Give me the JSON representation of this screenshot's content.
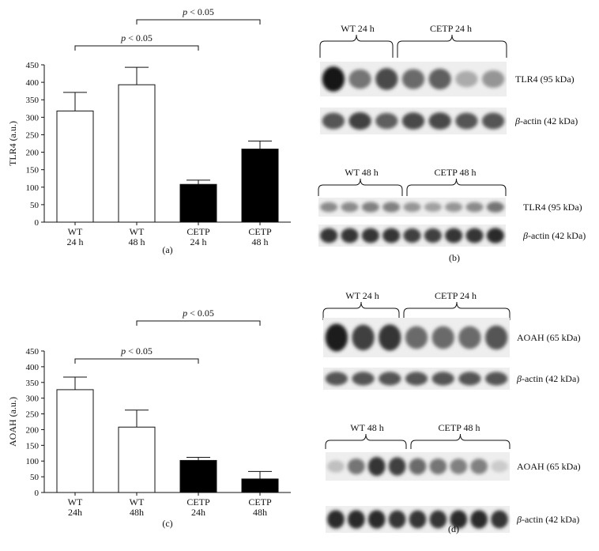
{
  "chart_data": [
    {
      "type": "bar",
      "panel": "(a)",
      "ylabel": "TLR4 (a.u.)",
      "ylim": [
        0,
        450
      ],
      "yticks": [
        0,
        50,
        100,
        150,
        200,
        250,
        300,
        350,
        400,
        450
      ],
      "categories": [
        [
          "WT",
          "24 h"
        ],
        [
          "WT",
          "48 h"
        ],
        [
          "CETP",
          "24 h"
        ],
        [
          "CETP",
          "48 h"
        ]
      ],
      "values": [
        318,
        393,
        108,
        209
      ],
      "errors": [
        53,
        50,
        12,
        23
      ],
      "bar_colors": [
        "#ffffff",
        "#ffffff",
        "#000000",
        "#000000"
      ],
      "significance": [
        {
          "from": 0,
          "to": 2,
          "p_italic": "p",
          "text": " < 0.05"
        },
        {
          "from": 1,
          "to": 3,
          "p_italic": "p",
          "text": " < 0.05"
        }
      ]
    },
    {
      "type": "bar",
      "panel": "(c)",
      "ylabel": "AOAH (a.u.)",
      "ylim": [
        0,
        450
      ],
      "yticks": [
        0,
        50,
        100,
        150,
        200,
        250,
        300,
        350,
        400,
        450
      ],
      "categories": [
        [
          "WT",
          "24h"
        ],
        [
          "WT",
          "48h"
        ],
        [
          "CETP",
          "24h"
        ],
        [
          "CETP",
          "48h"
        ]
      ],
      "values": [
        327,
        208,
        102,
        43
      ],
      "errors": [
        40,
        54,
        10,
        24
      ],
      "bar_colors": [
        "#ffffff",
        "#ffffff",
        "#000000",
        "#000000"
      ],
      "significance": [
        {
          "from": 0,
          "to": 2,
          "p_italic": "p",
          "text": " < 0.05"
        },
        {
          "from": 1,
          "to": 3,
          "p_italic": "p",
          "text": " < 0.05"
        }
      ]
    }
  ],
  "blots": [
    {
      "panel": "(b)",
      "groups": [
        "WT 24 h",
        "CETP 24 h"
      ],
      "rows": [
        {
          "label_italic": "",
          "label": "TLR4 (95 kDa)",
          "bands": [
            1.0,
            0.55,
            0.75,
            0.6,
            0.65,
            0.3,
            0.4
          ]
        },
        {
          "label_italic": "β",
          "label": "-actin (42 kDa)",
          "bands": [
            0.7,
            0.8,
            0.65,
            0.75,
            0.75,
            0.7,
            0.7
          ]
        }
      ]
    },
    {
      "panel": "",
      "groups": [
        "WT 48 h",
        "CETP 48 h"
      ],
      "rows": [
        {
          "label_italic": "",
          "label": "TLR4 (95 kDa)",
          "bands": [
            0.45,
            0.45,
            0.5,
            0.5,
            0.4,
            0.35,
            0.4,
            0.45,
            0.55
          ]
        },
        {
          "label_italic": "β",
          "label": "-actin (42 kDa)",
          "bands": [
            0.85,
            0.85,
            0.85,
            0.85,
            0.8,
            0.8,
            0.85,
            0.85,
            0.9
          ]
        }
      ]
    },
    {
      "panel": "",
      "groups": [
        "WT 24 h",
        "CETP 24 h"
      ],
      "rows": [
        {
          "label_italic": "",
          "label": "AOAH (65 kDa)",
          "bands": [
            0.95,
            0.8,
            0.85,
            0.6,
            0.6,
            0.6,
            0.7
          ]
        },
        {
          "label_italic": "β",
          "label": "-actin (42 kDa)",
          "bands": [
            0.7,
            0.7,
            0.7,
            0.7,
            0.7,
            0.7,
            0.7
          ]
        }
      ]
    },
    {
      "panel": "(d)",
      "groups": [
        "WT 48 h",
        "CETP 48 h"
      ],
      "rows": [
        {
          "label_italic": "",
          "label": "AOAH (65 kDa)",
          "bands": [
            0.2,
            0.55,
            0.85,
            0.8,
            0.6,
            0.55,
            0.5,
            0.5,
            0.15
          ]
        },
        {
          "label_italic": "β",
          "label": "-actin (42 kDa)",
          "bands": [
            0.9,
            0.9,
            0.9,
            0.85,
            0.85,
            0.85,
            0.9,
            0.9,
            0.85
          ]
        }
      ]
    }
  ]
}
